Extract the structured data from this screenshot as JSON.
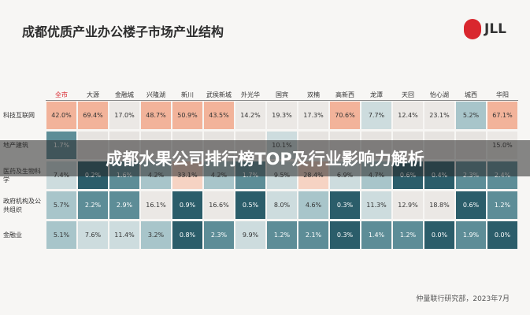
{
  "header": {
    "title": "成都优质产业办公楼子市场产业结构",
    "logo": "JLL"
  },
  "table": {
    "columns": [
      "全市",
      "大源",
      "金融城",
      "兴隆湖",
      "新川",
      "武侯新城",
      "外光华",
      "国宾",
      "双楠",
      "高新西",
      "龙潭",
      "天回",
      "怡心湖",
      "城西",
      "华阳"
    ],
    "rows": [
      {
        "label": "科技互联网",
        "cells": [
          "42.0%",
          "69.4%",
          "17.0%",
          "48.7%",
          "50.9%",
          "43.5%",
          "14.2%",
          "19.3%",
          "17.3%",
          "70.6%",
          "7.7%",
          "12.4%",
          "23.1%",
          "5.2%",
          "67.1%"
        ]
      },
      {
        "label": "地产建筑",
        "cells": [
          "1.7%",
          null,
          null,
          null,
          null,
          null,
          null,
          "10.1%",
          null,
          null,
          null,
          null,
          null,
          null,
          "15.0%"
        ]
      },
      {
        "label": "医药及生物科学",
        "cells": [
          "7.4%",
          "0.2%",
          "1.6%",
          "4.2%",
          "33.1%",
          "4.2%",
          "1.7%",
          "9.5%",
          "28.4%",
          "6.9%",
          "4.7%",
          "0.6%",
          "0.4%",
          "2.3%",
          "2.4%"
        ]
      },
      {
        "label": "政府机构及公共组织",
        "cells": [
          "5.7%",
          "2.2%",
          "2.9%",
          "16.1%",
          "0.9%",
          "16.6%",
          "0.5%",
          "8.0%",
          "4.6%",
          "0.3%",
          "11.3%",
          "12.9%",
          "18.8%",
          "0.6%",
          "1.2%"
        ]
      },
      {
        "label": "金融业",
        "cells": [
          "5.1%",
          "7.6%",
          "11.4%",
          "3.2%",
          "0.8%",
          "2.3%",
          "9.9%",
          "1.2%",
          "2.1%",
          "0.3%",
          "1.4%",
          "1.2%",
          "0.0%",
          "1.9%",
          "0.0%"
        ]
      }
    ]
  },
  "banner": {
    "title": "成都水果公司排行榜TOP及行业影响力解析"
  },
  "footer": {
    "source": "仲量联行研究部，2023年7月"
  }
}
